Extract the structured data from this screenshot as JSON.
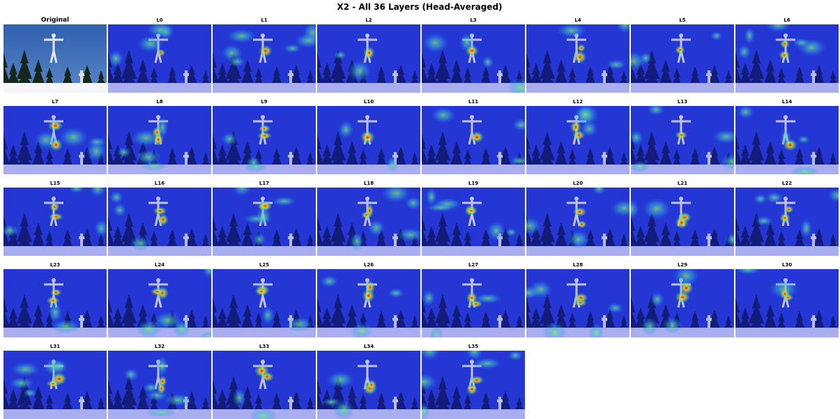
{
  "title": "X2 - All 36 Layers (Head-Averaged)",
  "panels": [
    "Original",
    "L0",
    "L1",
    "L2",
    "L3",
    "L4",
    "L5",
    "L6",
    "L7",
    "L8",
    "L9",
    "L10",
    "L11",
    "L12",
    "L13",
    "L14",
    "L15",
    "L16",
    "L17",
    "L18",
    "L19",
    "L20",
    "L21",
    "L22",
    "L23",
    "L24",
    "L25",
    "L26",
    "L27",
    "L28",
    "L29",
    "L30",
    "L31",
    "L32",
    "L33",
    "L34",
    "L35"
  ]
}
